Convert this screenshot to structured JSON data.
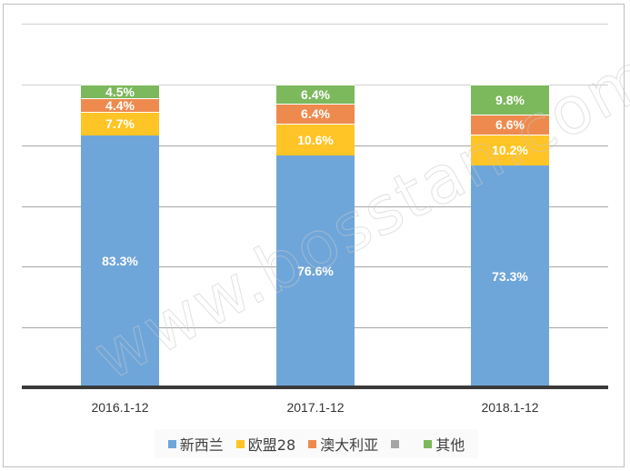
{
  "chart_data": {
    "type": "bar",
    "stacked": true,
    "title": "",
    "xlabel": "",
    "ylabel": "",
    "ylim": [
      0,
      1.2
    ],
    "grid": true,
    "legend_position": "bottom",
    "categories": [
      "2016.1-12",
      "2017.1-12",
      "2018.1-12"
    ],
    "series": [
      {
        "name": "新西兰",
        "color": "#6FA6DA",
        "values": [
          83.3,
          76.6,
          73.3
        ],
        "labels": [
          "83.3%",
          "76.6%",
          "73.3%"
        ]
      },
      {
        "name": "欧盟28",
        "color": "#FFC425",
        "values": [
          7.7,
          10.6,
          10.2
        ],
        "labels": [
          "7.7%",
          "10.6%",
          "10.2%"
        ]
      },
      {
        "name": "澳大利亚",
        "color": "#EF8A4E",
        "values": [
          4.4,
          6.4,
          6.6
        ],
        "labels": [
          "4.4%",
          "6.4%",
          "6.6%"
        ]
      },
      {
        "name": "",
        "color": "#A5A5A5",
        "values": [
          0,
          0,
          0
        ],
        "labels": [
          "",
          "",
          ""
        ]
      },
      {
        "name": "其他",
        "color": "#7CB85C",
        "values": [
          4.5,
          6.4,
          9.8
        ],
        "labels": [
          "4.5%",
          "6.4%",
          "9.8%"
        ]
      }
    ]
  },
  "legend": {
    "items": [
      {
        "label": "新西兰",
        "color": "#6FA6DA"
      },
      {
        "label": "欧盟28",
        "color": "#FFC425"
      },
      {
        "label": "澳大利亚",
        "color": "#EF8A4E"
      },
      {
        "label": "",
        "color": "#A5A5A5"
      },
      {
        "label": "其他",
        "color": "#7CB85C"
      }
    ]
  },
  "watermark": "www.bosstan.com"
}
